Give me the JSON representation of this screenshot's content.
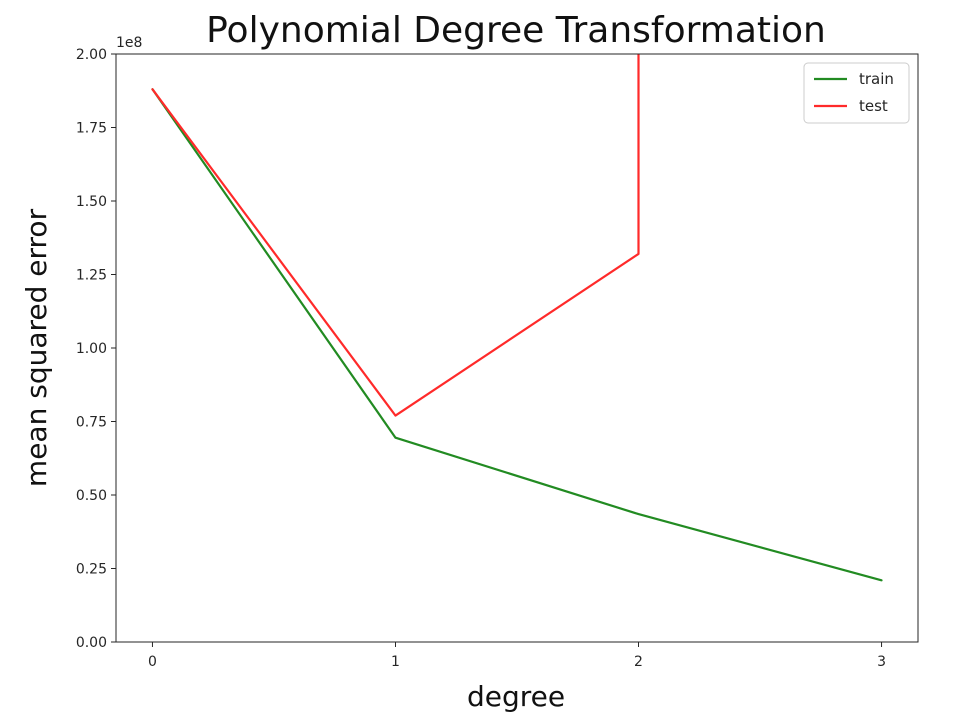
{
  "chart_data": {
    "type": "line",
    "title": "Polynomial Degree Transformation",
    "xlabel": "degree",
    "ylabel": "mean squared error",
    "y_offset_label": "1e8",
    "x_ticks": [
      "0",
      "1",
      "2",
      "3"
    ],
    "y_ticks": [
      "0.00",
      "0.25",
      "0.50",
      "0.75",
      "1.00",
      "1.25",
      "1.50",
      "1.75",
      "2.00"
    ],
    "xlim": [
      -0.15,
      3.15
    ],
    "ylim": [
      0,
      2.0
    ],
    "grid": false,
    "legend_position": "top-right",
    "series": [
      {
        "name": "train",
        "color": "#228B22",
        "x": [
          0,
          1,
          2,
          3
        ],
        "y": [
          1.88,
          0.695,
          0.435,
          0.21
        ]
      },
      {
        "name": "test",
        "color": "#FF2A2A",
        "x": [
          0,
          1,
          2,
          2.0
        ],
        "y": [
          1.88,
          0.77,
          1.32,
          2.0
        ]
      }
    ]
  }
}
